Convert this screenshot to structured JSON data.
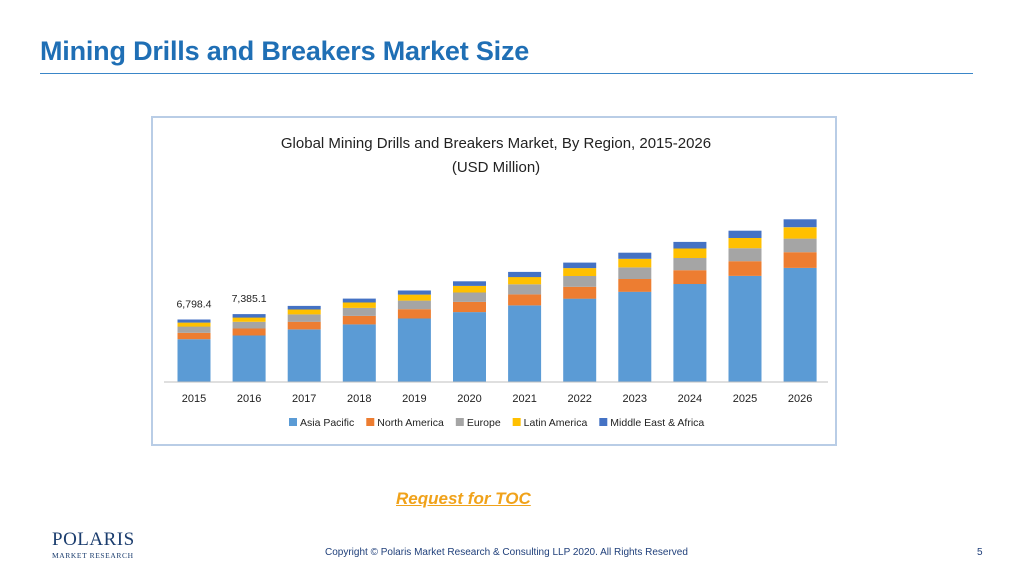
{
  "slide": {
    "title": "Mining Drills and Breakers Market Size",
    "toc_link": "Request for TOC",
    "copyright": "Copyright © Polaris Market Research & Consulting LLP 2020. All Rights Reserved",
    "page_number": "5",
    "logo_main": "POLARIS",
    "logo_sub": "MARKET RESEARCH",
    "colors": {
      "title": "#1f6fb5",
      "toc_link": "#f0a21a"
    }
  },
  "chart_data": {
    "type": "bar",
    "stacked": true,
    "title": "Global Mining Drills and Breakers Market, By Region, 2015-2026",
    "subtitle": "(USD Million)",
    "categories": [
      "2015",
      "2016",
      "2017",
      "2018",
      "2019",
      "2020",
      "2021",
      "2022",
      "2023",
      "2024",
      "2025",
      "2026"
    ],
    "totals": [
      6798.4,
      7385.1,
      8270,
      9060,
      9950,
      10950,
      11970,
      12980,
      14050,
      15230,
      16450,
      17680
    ],
    "series": [
      {
        "name": "Asia Pacific",
        "color": "#5b9bd5",
        "values": [
          4650,
          5050,
          5710,
          6260,
          6900,
          7600,
          8320,
          9060,
          9810,
          10650,
          11530,
          12400
        ]
      },
      {
        "name": "North America",
        "color": "#ed7d31",
        "values": [
          700,
          760,
          840,
          920,
          1010,
          1110,
          1200,
          1290,
          1390,
          1500,
          1600,
          1710
        ]
      },
      {
        "name": "Europe",
        "color": "#a5a5a5",
        "values": [
          680,
          730,
          800,
          870,
          940,
          1020,
          1100,
          1170,
          1250,
          1330,
          1410,
          1480
        ]
      },
      {
        "name": "Latin America",
        "color": "#ffc000",
        "values": [
          430,
          470,
          530,
          590,
          650,
          720,
          790,
          860,
          940,
          1030,
          1120,
          1230
        ]
      },
      {
        "name": "Middle East & Africa",
        "color": "#4472c4",
        "values": [
          338.4,
          375.1,
          390,
          420,
          450,
          500,
          560,
          600,
          660,
          720,
          790,
          860
        ]
      }
    ],
    "data_labels": [
      {
        "category": "2015",
        "text": "6,798.4"
      },
      {
        "category": "2016",
        "text": "7,385.1"
      }
    ],
    "ylim": [
      0,
      20000
    ],
    "legend_position": "bottom",
    "grid": false
  }
}
